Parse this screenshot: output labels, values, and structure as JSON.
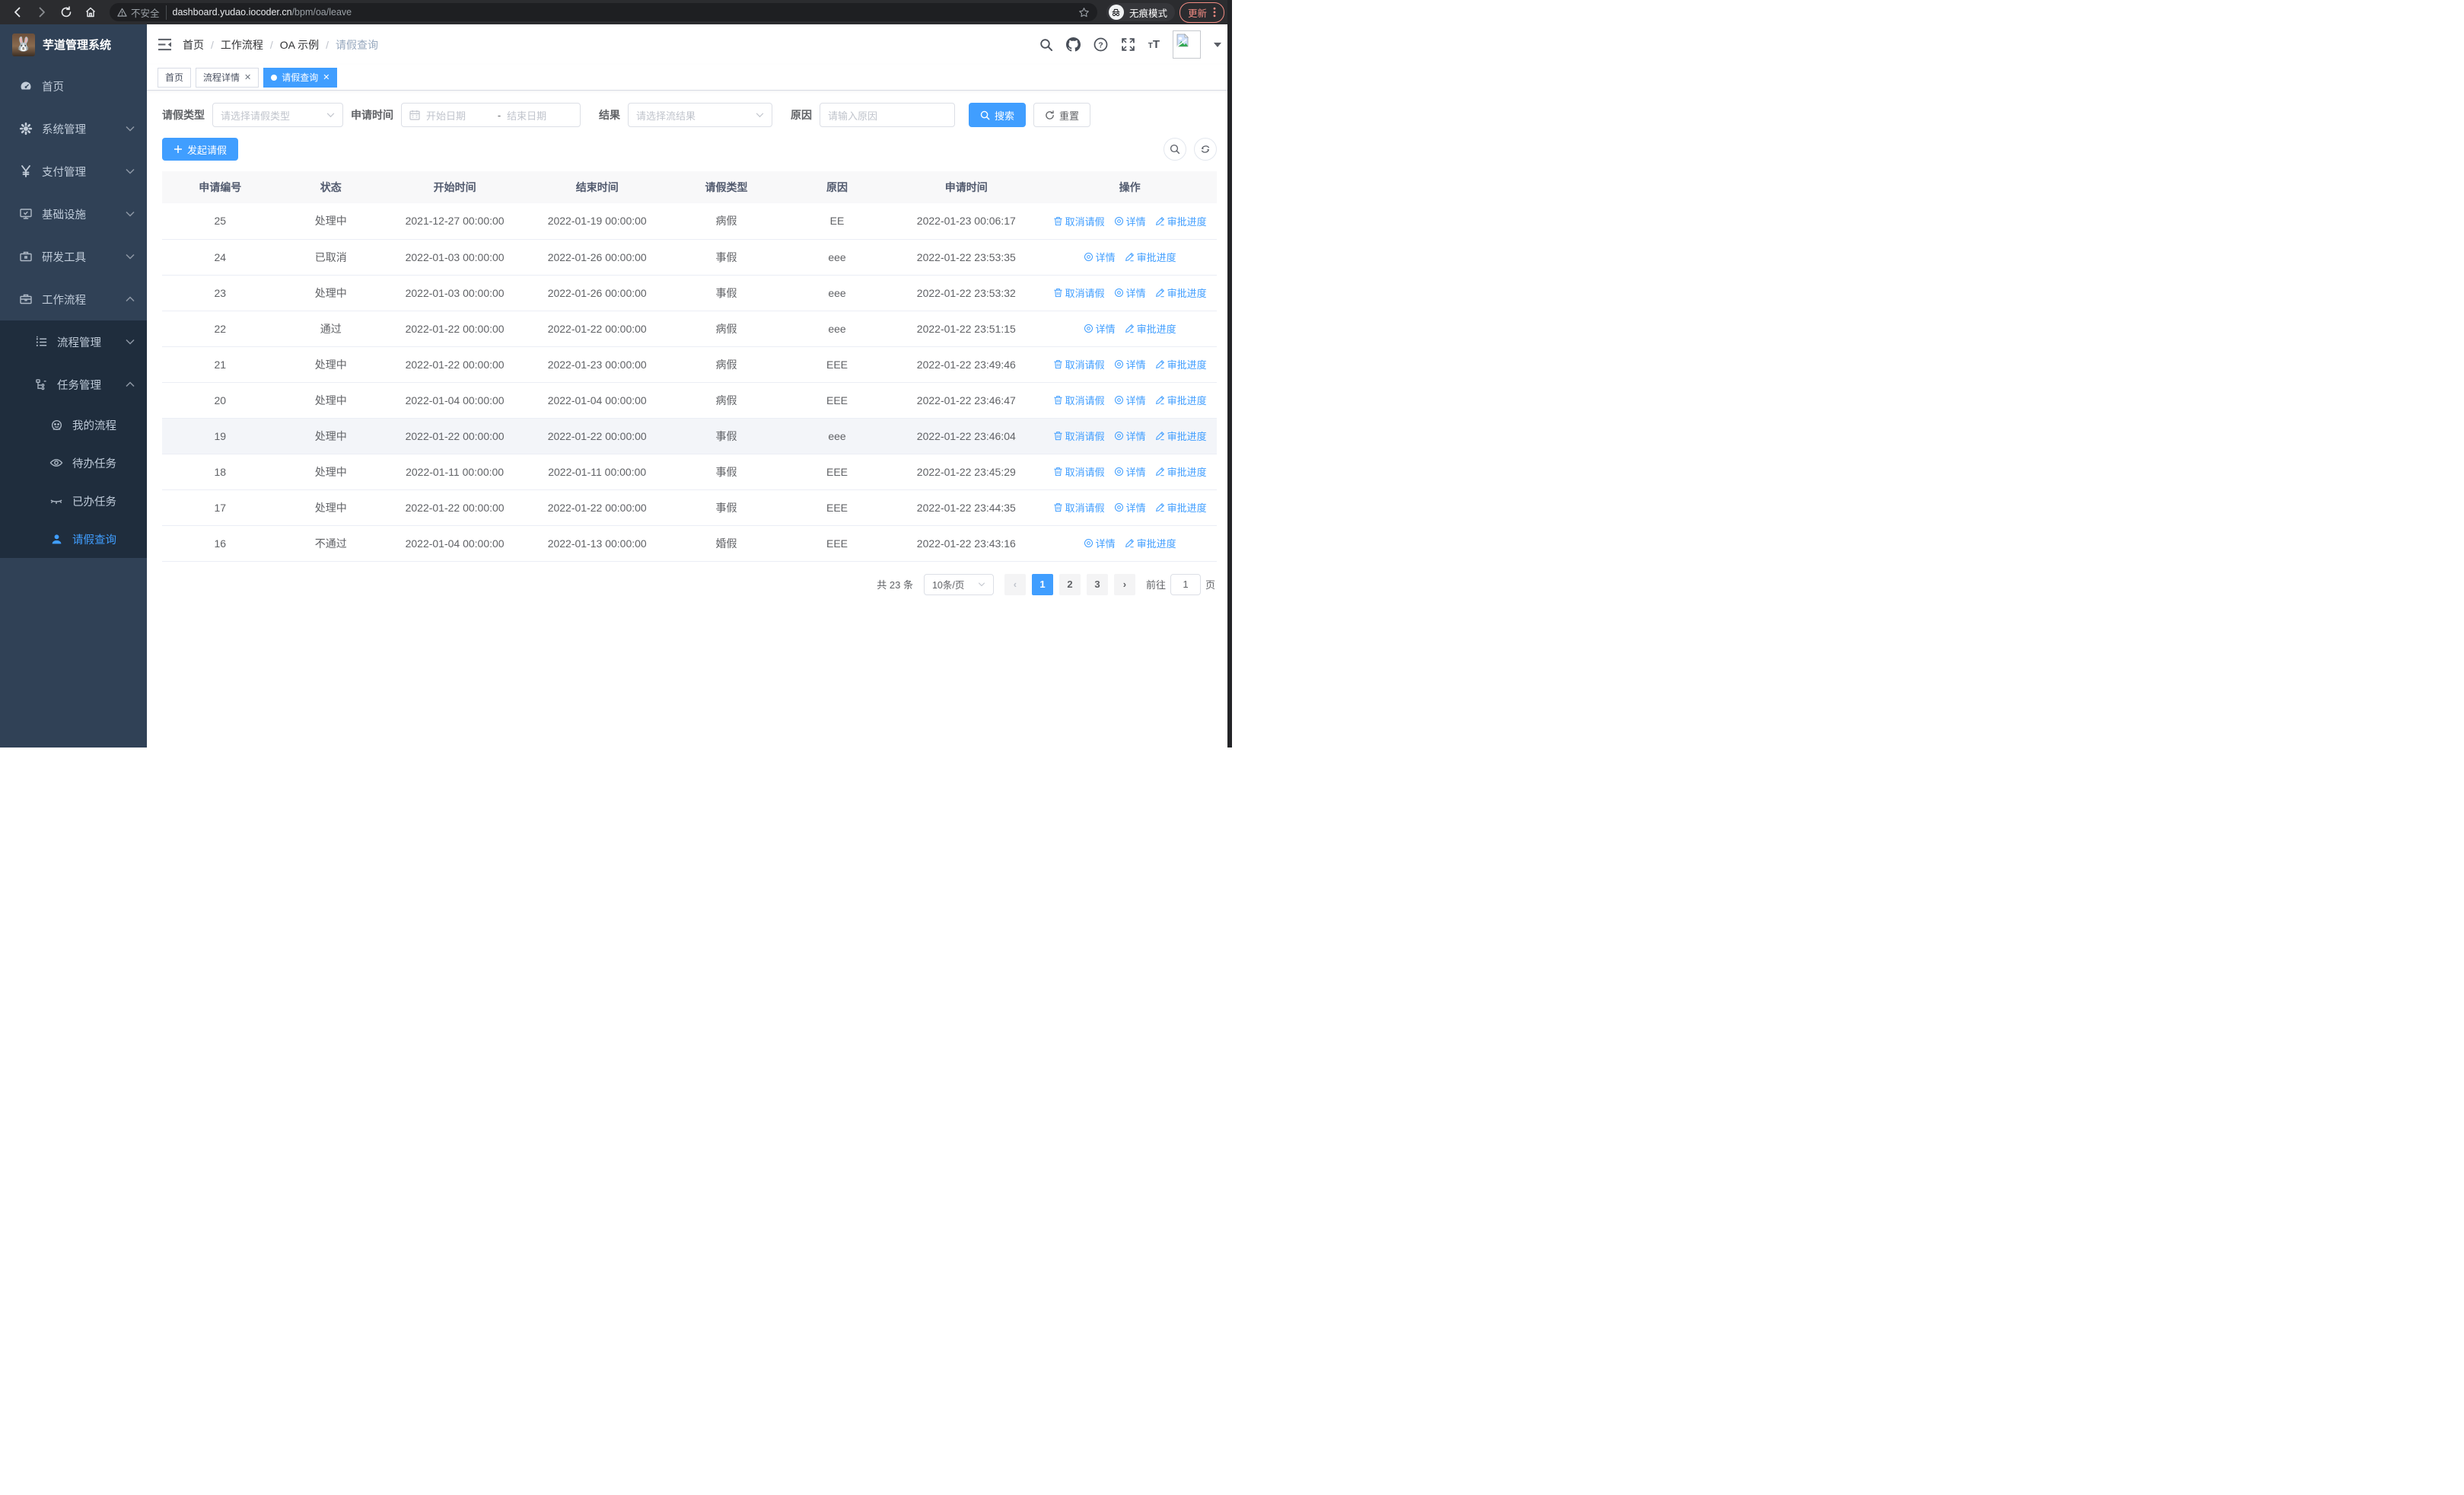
{
  "browser": {
    "security_label": "不安全",
    "url_host": "dashboard.yudao.iocoder.cn",
    "url_path": "/bpm/oa/leave",
    "incognito_label": "无痕模式",
    "update_label": "更新"
  },
  "sidebar": {
    "app_title": "芋道管理系统",
    "items": [
      {
        "label": "首页",
        "icon": "dashboard-icon",
        "expand": ""
      },
      {
        "label": "系统管理",
        "icon": "gear-icon",
        "expand": "down"
      },
      {
        "label": "支付管理",
        "icon": "yen-icon",
        "expand": "down"
      },
      {
        "label": "基础设施",
        "icon": "monitor-icon",
        "expand": "down"
      },
      {
        "label": "研发工具",
        "icon": "toolbox-icon",
        "expand": "down"
      },
      {
        "label": "工作流程",
        "icon": "briefcase-icon",
        "expand": "up"
      }
    ],
    "submenu": [
      {
        "label": "流程管理",
        "icon": "list-icon",
        "expand": "down"
      },
      {
        "label": "任务管理",
        "icon": "tree-icon",
        "expand": "up"
      }
    ],
    "task_children": [
      {
        "label": "我的流程",
        "icon": "face-icon",
        "active": false
      },
      {
        "label": "待办任务",
        "icon": "eye-open-icon",
        "active": false
      },
      {
        "label": "已办任务",
        "icon": "eye-closed-icon",
        "active": false
      },
      {
        "label": "请假查询",
        "icon": "user-icon",
        "active": true
      }
    ]
  },
  "header": {
    "breadcrumb": [
      "首页",
      "工作流程",
      "OA 示例",
      "请假查询"
    ]
  },
  "tabs": [
    {
      "label": "首页",
      "closable": false,
      "active": false
    },
    {
      "label": "流程详情",
      "closable": true,
      "active": false
    },
    {
      "label": "请假查询",
      "closable": true,
      "active": true
    }
  ],
  "filters": {
    "leave_type_label": "请假类型",
    "leave_type_placeholder": "请选择请假类型",
    "apply_time_label": "申请时间",
    "date_start_placeholder": "开始日期",
    "date_separator": "-",
    "date_end_placeholder": "结束日期",
    "result_label": "结果",
    "result_placeholder": "请选择流结果",
    "reason_label": "原因",
    "reason_placeholder": "请输入原因",
    "search_label": "搜索",
    "reset_label": "重置"
  },
  "toolbar": {
    "create_label": "发起请假"
  },
  "table": {
    "headers": [
      "申请编号",
      "状态",
      "开始时间",
      "结束时间",
      "请假类型",
      "原因",
      "申请时间",
      "操作"
    ],
    "rows": [
      {
        "id": "25",
        "status": "处理中",
        "start": "2021-12-27 00:00:00",
        "end": "2022-01-19 00:00:00",
        "type": "病假",
        "reason": "EE",
        "applied": "2022-01-23 00:06:17",
        "can_cancel": true,
        "highlight": false
      },
      {
        "id": "24",
        "status": "已取消",
        "start": "2022-01-03 00:00:00",
        "end": "2022-01-26 00:00:00",
        "type": "事假",
        "reason": "eee",
        "applied": "2022-01-22 23:53:35",
        "can_cancel": false,
        "highlight": false
      },
      {
        "id": "23",
        "status": "处理中",
        "start": "2022-01-03 00:00:00",
        "end": "2022-01-26 00:00:00",
        "type": "事假",
        "reason": "eee",
        "applied": "2022-01-22 23:53:32",
        "can_cancel": true,
        "highlight": false
      },
      {
        "id": "22",
        "status": "通过",
        "start": "2022-01-22 00:00:00",
        "end": "2022-01-22 00:00:00",
        "type": "病假",
        "reason": "eee",
        "applied": "2022-01-22 23:51:15",
        "can_cancel": false,
        "highlight": false
      },
      {
        "id": "21",
        "status": "处理中",
        "start": "2022-01-22 00:00:00",
        "end": "2022-01-23 00:00:00",
        "type": "病假",
        "reason": "EEE",
        "applied": "2022-01-22 23:49:46",
        "can_cancel": true,
        "highlight": false
      },
      {
        "id": "20",
        "status": "处理中",
        "start": "2022-01-04 00:00:00",
        "end": "2022-01-04 00:00:00",
        "type": "病假",
        "reason": "EEE",
        "applied": "2022-01-22 23:46:47",
        "can_cancel": true,
        "highlight": false
      },
      {
        "id": "19",
        "status": "处理中",
        "start": "2022-01-22 00:00:00",
        "end": "2022-01-22 00:00:00",
        "type": "事假",
        "reason": "eee",
        "applied": "2022-01-22 23:46:04",
        "can_cancel": true,
        "highlight": true
      },
      {
        "id": "18",
        "status": "处理中",
        "start": "2022-01-11 00:00:00",
        "end": "2022-01-11 00:00:00",
        "type": "事假",
        "reason": "EEE",
        "applied": "2022-01-22 23:45:29",
        "can_cancel": true,
        "highlight": false
      },
      {
        "id": "17",
        "status": "处理中",
        "start": "2022-01-22 00:00:00",
        "end": "2022-01-22 00:00:00",
        "type": "事假",
        "reason": "EEE",
        "applied": "2022-01-22 23:44:35",
        "can_cancel": true,
        "highlight": false
      },
      {
        "id": "16",
        "status": "不通过",
        "start": "2022-01-04 00:00:00",
        "end": "2022-01-13 00:00:00",
        "type": "婚假",
        "reason": "EEE",
        "applied": "2022-01-22 23:43:16",
        "can_cancel": false,
        "highlight": false
      }
    ]
  },
  "actions": {
    "cancel": "取消请假",
    "detail": "详情",
    "progress": "审批进度"
  },
  "pagination": {
    "total_label": "共 23 条",
    "page_size": "10条/页",
    "pages": [
      "1",
      "2",
      "3"
    ],
    "active_page": "1",
    "goto_label": "前往",
    "goto_value": "1",
    "goto_suffix": "页"
  },
  "colors": {
    "accent": "#409eff",
    "sidebar_bg": "#304156",
    "submenu_bg": "#1f2d3d",
    "link": "#409eff"
  }
}
